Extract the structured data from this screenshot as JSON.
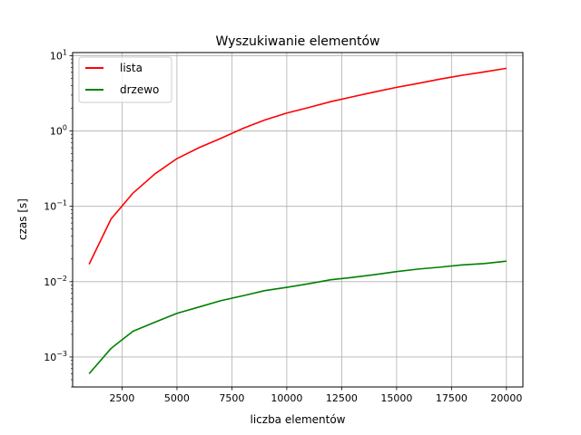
{
  "chart_data": {
    "type": "line",
    "title": "Wyszukiwanie elementów",
    "xlabel": "liczba elementów",
    "ylabel": "czas [s]",
    "xlim": [
      250,
      20750
    ],
    "ylim": [
      0.0004,
      11
    ],
    "yscale": "log",
    "grid": true,
    "legend": "top-left",
    "x_ticks": [
      2500,
      5000,
      7500,
      10000,
      12500,
      15000,
      17500,
      20000
    ],
    "x_tick_labels": [
      "2500",
      "5000",
      "7500",
      "10000",
      "12500",
      "15000",
      "17500",
      "20000"
    ],
    "y_ticks": [
      0.001,
      0.01,
      0.1,
      1,
      10
    ],
    "y_tick_base": "10",
    "y_tick_exponents": [
      "−3",
      "−2",
      "−1",
      "0",
      "1"
    ],
    "x": [
      1000,
      2000,
      3000,
      4000,
      5000,
      6000,
      7000,
      8000,
      9000,
      10000,
      11000,
      12000,
      13000,
      14000,
      15000,
      16000,
      17000,
      18000,
      19000,
      20000
    ],
    "series": [
      {
        "name": "lista",
        "color": "#ff0000",
        "values": [
          0.017,
          0.068,
          0.15,
          0.27,
          0.43,
          0.6,
          0.8,
          1.08,
          1.4,
          1.73,
          2.05,
          2.45,
          2.85,
          3.3,
          3.8,
          4.3,
          4.9,
          5.5,
          6.1,
          6.8
        ]
      },
      {
        "name": "drzewo",
        "color": "#008000",
        "values": [
          0.0006,
          0.0013,
          0.0022,
          0.0029,
          0.0038,
          0.0046,
          0.0056,
          0.0065,
          0.0076,
          0.0084,
          0.0094,
          0.0106,
          0.0114,
          0.0124,
          0.0136,
          0.0147,
          0.0156,
          0.0167,
          0.0174,
          0.0187
        ]
      }
    ]
  }
}
